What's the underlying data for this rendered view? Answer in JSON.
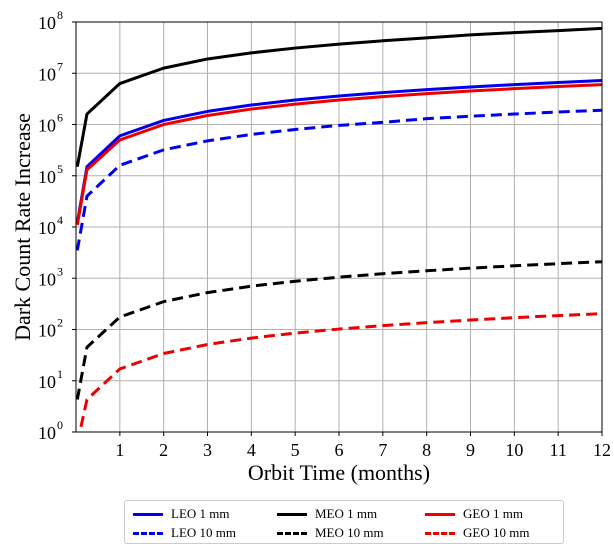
{
  "chart_data": {
    "type": "line",
    "xlabel": "Orbit Time (months)",
    "ylabel": "Dark Count Rate Increase",
    "xlim": [
      0,
      12
    ],
    "ylim": [
      1,
      100000000
    ],
    "yscale": "log",
    "grid": true,
    "legend_position": "bottom",
    "x_ticks": [
      "1",
      "2",
      "3",
      "4",
      "5",
      "6",
      "7",
      "8",
      "9",
      "10",
      "11",
      "12"
    ],
    "x_tick_values": [
      1,
      2,
      3,
      4,
      5,
      6,
      7,
      8,
      9,
      10,
      11,
      12
    ],
    "y_ticks": [
      {
        "base": "10",
        "exp": "0"
      },
      {
        "base": "10",
        "exp": "1"
      },
      {
        "base": "10",
        "exp": "2"
      },
      {
        "base": "10",
        "exp": "3"
      },
      {
        "base": "10",
        "exp": "4"
      },
      {
        "base": "10",
        "exp": "5"
      },
      {
        "base": "10",
        "exp": "6"
      },
      {
        "base": "10",
        "exp": "7"
      },
      {
        "base": "10",
        "exp": "8"
      }
    ],
    "x": [
      0.03,
      0.25,
      1,
      2,
      3,
      4,
      5,
      6,
      7,
      8,
      9,
      10,
      11,
      12
    ],
    "series": [
      {
        "name": "LEO 1 mm",
        "color": "#0000ee",
        "dash": "solid",
        "values": [
          12000,
          150000,
          600000,
          1200000,
          1800000,
          2400000,
          3000000,
          3600000,
          4200000,
          4800000,
          5400000,
          6000000,
          6600000,
          7200000
        ]
      },
      {
        "name": "MEO 1 mm",
        "color": "#000000",
        "dash": "solid",
        "values": [
          150000,
          1600000,
          6300000,
          12600000,
          19000000,
          25000000,
          31000000,
          37000000,
          43000000,
          49000000,
          56000000,
          62000000,
          68000000,
          75000000
        ]
      },
      {
        "name": "GEO 1 mm",
        "color": "#ee0000",
        "dash": "solid",
        "values": [
          11000,
          130000,
          500000,
          1000000,
          1500000,
          2000000,
          2500000,
          3000000,
          3500000,
          4000000,
          4500000,
          5000000,
          5500000,
          6000000
        ]
      },
      {
        "name": "LEO 10 mm",
        "color": "#0000ee",
        "dash": "dashed",
        "values": [
          3500,
          40000,
          160000,
          320000,
          480000,
          640000,
          800000,
          960000,
          1100000,
          1300000,
          1450000,
          1600000,
          1750000,
          1900000
        ]
      },
      {
        "name": "MEO 10 mm",
        "color": "#000000",
        "dash": "dashed",
        "values": [
          4.3,
          45,
          175,
          350,
          525,
          700,
          875,
          1050,
          1225,
          1400,
          1575,
          1750,
          1925,
          2100
        ]
      },
      {
        "name": "GEO 10 mm",
        "color": "#ee0000",
        "dash": "dashed",
        "values": [
          0.6,
          4.3,
          17,
          34,
          51,
          68,
          85,
          102,
          119,
          136,
          153,
          170,
          187,
          204
        ]
      }
    ]
  }
}
